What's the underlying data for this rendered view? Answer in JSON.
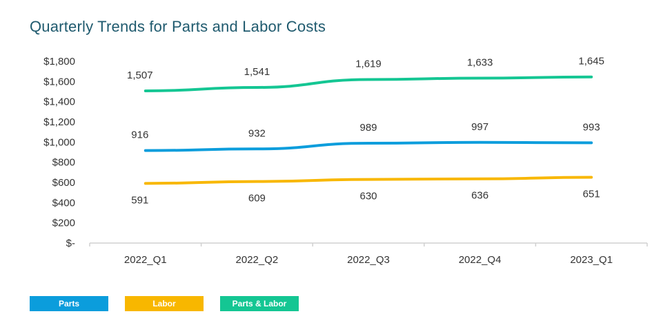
{
  "chart_data": {
    "type": "line",
    "title": "Quarterly Trends for Parts and Labor Costs",
    "categories": [
      "2022_Q1",
      "2022_Q2",
      "2022_Q3",
      "2022_Q4",
      "2023_Q1"
    ],
    "y_ticks": [
      "$-",
      "$200",
      "$400",
      "$600",
      "$800",
      "$1,000",
      "$1,200",
      "$1,400",
      "$1,600",
      "$1,800"
    ],
    "ylim": [
      0,
      1800
    ],
    "grid": false,
    "legend_position": "bottom-left",
    "series": [
      {
        "name": "Parts",
        "color": "#0b9ddc",
        "values": [
          916,
          932,
          989,
          997,
          993
        ],
        "labels": [
          "916",
          "932",
          "989",
          "997",
          "993"
        ],
        "label_position": "above"
      },
      {
        "name": "Labor",
        "color": "#f8b700",
        "values": [
          591,
          609,
          630,
          636,
          651
        ],
        "labels": [
          "591",
          "609",
          "630",
          "636",
          "651"
        ],
        "label_position": "below"
      },
      {
        "name": "Parts & Labor",
        "color": "#14c693",
        "values": [
          1507,
          1541,
          1619,
          1633,
          1645
        ],
        "labels": [
          "1,507",
          "1,541",
          "1,619",
          "1,633",
          "1,645"
        ],
        "label_position": "above"
      }
    ]
  }
}
